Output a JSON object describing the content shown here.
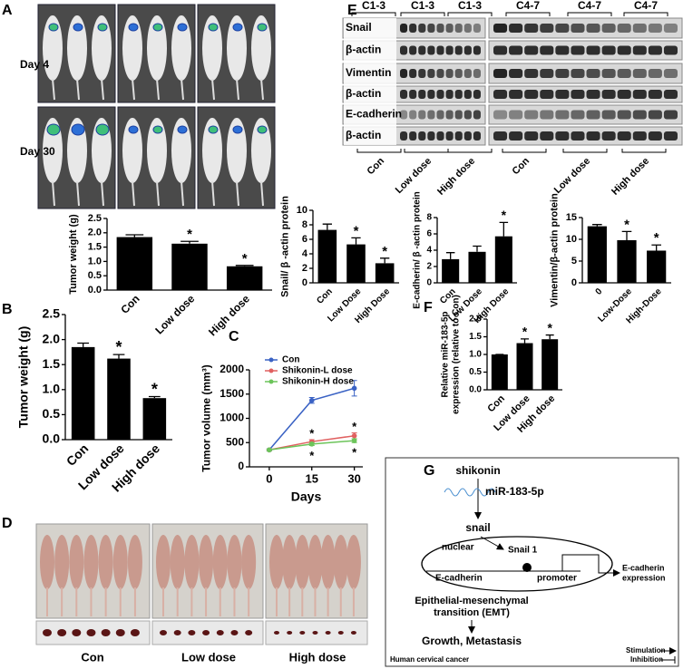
{
  "panel_labels": [
    "A",
    "B",
    "C",
    "D",
    "E",
    "F",
    "G"
  ],
  "panel_a": {
    "rows": [
      "Day 4",
      "Day 30"
    ]
  },
  "panel_d": {
    "groups": [
      "Con",
      "Low dose",
      "High dose"
    ]
  },
  "panel_e": {
    "rows": [
      "Snail",
      "β-actin",
      "Vimentin",
      "β-actin",
      "E-cadherin",
      "β-actin"
    ],
    "top_groups": [
      "C1-3",
      "C1-3",
      "C1-3",
      "C4-7",
      "C4-7",
      "C4-7"
    ],
    "bottom_groups": [
      "Con",
      "Low dose",
      "High dose",
      "Con",
      "Low dose",
      "High dose"
    ]
  },
  "panel_g": {
    "drug": "shikonin",
    "mirna": "miR-183-5p",
    "target": "snail",
    "nuclear": "nuclear",
    "protein": "Snail 1",
    "gene": "E-cadherin",
    "promoter": "promoter",
    "expression": [
      "E-cadherin",
      "expression"
    ],
    "emt": [
      "Epithelial-mesenchymal",
      "transition (EMT)"
    ],
    "outcome": "Growth, Metastasis",
    "context": "Human cervical cancer",
    "stimulation": "Stimulation",
    "inhibition": "Inhibition"
  },
  "chart_data": [
    {
      "type": "bar",
      "y_label": "Tumor weight (g)",
      "categories": [
        "Con",
        "Low dose",
        "High dose"
      ],
      "values": [
        1.85,
        1.62,
        0.83
      ],
      "errors": [
        0.08,
        0.08,
        0.03
      ],
      "significance": [
        null,
        "*",
        "*"
      ],
      "color": "#000000",
      "ylim": [
        0,
        2.5
      ],
      "yticks": [
        {
          "value": 0,
          "label": "0.0"
        },
        0.5,
        {
          "value": 1,
          "label": "1.0"
        },
        1.5,
        {
          "value": 2,
          "label": "2.0"
        },
        2.5
      ]
    },
    {
      "type": "bar",
      "y_label": "Tumor weight (g)",
      "categories": [
        "Con",
        "Low dose",
        "High dose"
      ],
      "values": [
        1.85,
        1.62,
        0.83
      ],
      "errors": [
        0.08,
        0.08,
        0.03
      ],
      "significance": [
        null,
        "*",
        "*"
      ],
      "color": "#000000",
      "ylim": [
        0,
        2.5
      ],
      "yticks": [
        {
          "value": 0,
          "label": "0.0"
        },
        0.5,
        {
          "value": 1,
          "label": "1.0"
        },
        1.5,
        {
          "value": 2,
          "label": "2.0"
        },
        2.5
      ]
    },
    {
      "type": "line",
      "y_label": "Tumor volume (mm³)",
      "x_label": "Days",
      "x": [
        0,
        15,
        30
      ],
      "xlim": [
        -7,
        33
      ],
      "xticks": [
        0,
        15,
        30
      ],
      "ylim": [
        0,
        2000
      ],
      "yticks": [
        0,
        500,
        1000,
        1500,
        2000
      ],
      "legend": "upper left",
      "series": [
        {
          "name": "Con",
          "color": "#3a62c4",
          "values": [
            350,
            1370,
            1620
          ],
          "errors": [
            20,
            60,
            160
          ],
          "significance": [
            null,
            null,
            null
          ]
        },
        {
          "name": "Shikonin-L dose",
          "color": "#e06060",
          "values": [
            350,
            520,
            640
          ],
          "errors": [
            15,
            40,
            60
          ],
          "significance": [
            null,
            "*",
            "*"
          ]
        },
        {
          "name": "Shikonin-H dose",
          "color": "#6cc45a",
          "values": [
            350,
            470,
            540
          ],
          "errors": [
            15,
            30,
            40
          ],
          "significance": [
            null,
            "*",
            "*"
          ]
        }
      ]
    },
    {
      "type": "bar",
      "y_label": "Snail/ β -actin protein",
      "categories": [
        "Con",
        "Low Dose",
        "High Dose"
      ],
      "values": [
        7.3,
        5.3,
        2.7
      ],
      "errors": [
        0.8,
        0.9,
        0.7
      ],
      "significance": [
        null,
        "*",
        "*"
      ],
      "color": "#000000",
      "ylim": [
        0,
        10
      ],
      "yticks": [
        0,
        2,
        4,
        6,
        8,
        10
      ]
    },
    {
      "type": "bar",
      "y_label": "E-cadherin/ β -actin protein",
      "categories": [
        "Con",
        "Low Dose",
        "High Dose"
      ],
      "values": [
        2.9,
        3.8,
        5.7
      ],
      "errors": [
        0.8,
        0.7,
        1.7
      ],
      "significance": [
        null,
        null,
        "*"
      ],
      "color": "#000000",
      "ylim": [
        0,
        8
      ],
      "yticks": [
        0,
        2,
        4,
        6,
        8
      ]
    },
    {
      "type": "bar",
      "y_label": "Vimentin/β-actin protein",
      "categories": [
        "0",
        "Low-Dose",
        "High-Dose"
      ],
      "values": [
        13,
        9.8,
        7.4
      ],
      "errors": [
        0.4,
        2,
        1.3
      ],
      "significance": [
        null,
        "*",
        "*"
      ],
      "color": "#000000",
      "ylim": [
        0,
        15
      ],
      "yticks": [
        0,
        5,
        10,
        15
      ]
    },
    {
      "type": "bar",
      "y_label": [
        "Relative miR-183-5p",
        "expression (relative to Con)"
      ],
      "categories": [
        "Con",
        "Low dose",
        "High dose"
      ],
      "values": [
        1.0,
        1.32,
        1.43
      ],
      "errors": [
        0,
        0.12,
        0.12
      ],
      "significance": [
        null,
        "*",
        "*"
      ],
      "color": "#000000",
      "ylim": [
        0,
        2
      ],
      "yticks": [
        {
          "value": 0,
          "label": "0.0"
        },
        0.5,
        {
          "value": 1,
          "label": "1.0"
        },
        1.5,
        {
          "value": 2,
          "label": "2.0"
        }
      ]
    }
  ]
}
